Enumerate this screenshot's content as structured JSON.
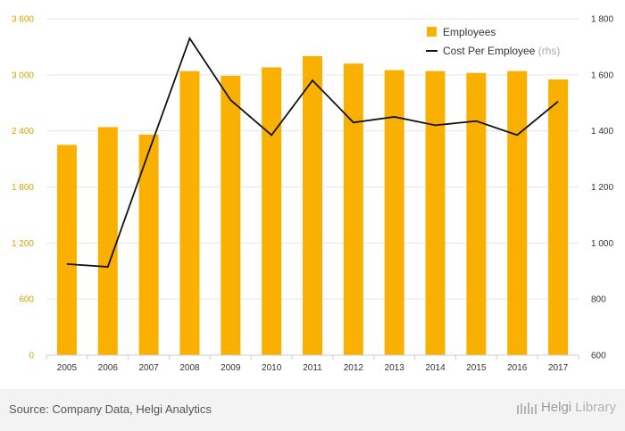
{
  "chart_data": {
    "type": "bar",
    "title": "",
    "categories": [
      "2005",
      "2006",
      "2007",
      "2008",
      "2009",
      "2010",
      "2011",
      "2012",
      "2013",
      "2014",
      "2015",
      "2016",
      "2017"
    ],
    "series": [
      {
        "name": "Employees",
        "type": "bar",
        "axis": "left",
        "color": "#f9b000",
        "values": [
          2250,
          2440,
          2360,
          3040,
          2990,
          3080,
          3200,
          3120,
          3050,
          3040,
          3020,
          3040,
          2950
        ]
      },
      {
        "name": "Cost Per Employee",
        "axis_note": "(rhs)",
        "type": "line",
        "axis": "right",
        "color": "#111111",
        "values": [
          925,
          915,
          1325,
          1730,
          1510,
          1385,
          1580,
          1430,
          1450,
          1420,
          1435,
          1385,
          1505
        ]
      }
    ],
    "ylim_left": [
      0,
      3600
    ],
    "yticks_left": [
      0,
      600,
      1200,
      1800,
      2400,
      3000,
      3600
    ],
    "ytick_labels_left": [
      "0",
      "600",
      "1 200",
      "1 800",
      "2 400",
      "3 000",
      "3 600"
    ],
    "ylim_right": [
      600,
      1800
    ],
    "yticks_right": [
      600,
      800,
      1000,
      1200,
      1400,
      1600,
      1800
    ],
    "ytick_labels_right": [
      "600",
      "800",
      "1 000",
      "1 200",
      "1 400",
      "1 600",
      "1 800"
    ],
    "legend_position": "top-right",
    "grid": true
  },
  "footer": {
    "source": "Source: Company Data, Helgi Analytics",
    "brand_main": "Helgi",
    "brand_suffix": "Library"
  }
}
